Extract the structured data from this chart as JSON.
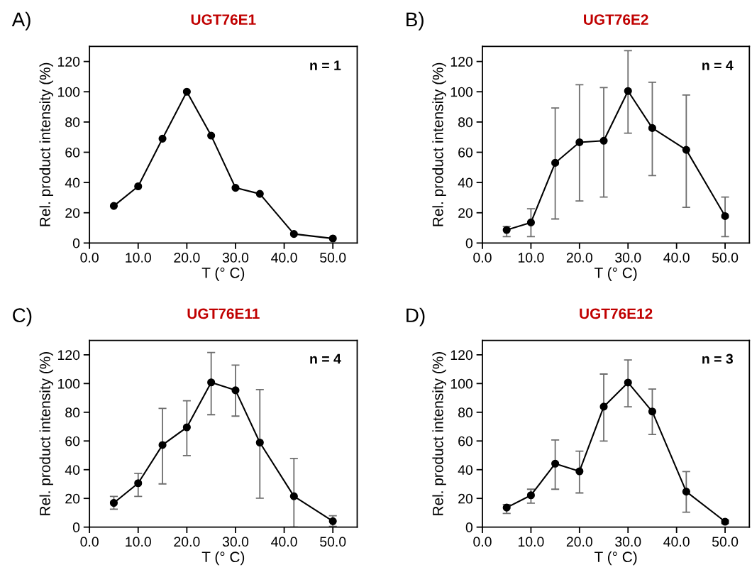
{
  "chart_data": [
    {
      "type": "line",
      "title": "UGT76E1",
      "xlabel": "T (° C)",
      "ylabel": "Rel. product intensity (%)",
      "annotations": [
        "A)",
        "n = 1"
      ],
      "x": [
        5,
        10,
        15,
        20,
        25,
        30,
        35,
        42,
        50
      ],
      "series": [
        {
          "color": "#000000",
          "values": [
            24.5,
            37.5,
            69,
            100,
            71,
            36.5,
            32.5,
            6,
            3
          ]
        }
      ],
      "xlim": [
        0,
        55
      ],
      "xticks": [
        {
          "value": 0,
          "label": "0.0"
        },
        {
          "value": 10,
          "label": "10.0"
        },
        {
          "value": 20,
          "label": "20.0"
        },
        {
          "value": 30,
          "label": "30.0"
        },
        {
          "value": 40,
          "label": "40.0"
        },
        {
          "value": 50,
          "label": "50.0"
        }
      ],
      "ylim": [
        0,
        130
      ],
      "yticks": [
        0,
        20,
        40,
        60,
        80,
        100,
        120
      ],
      "marker": "circle",
      "line_style": "solid",
      "grid": false,
      "legend": false
    },
    {
      "type": "line",
      "title": "UGT76E2",
      "xlabel": "T (° C)",
      "ylabel": "Rel. product intensity (%)",
      "annotations": [
        "B)",
        "n = 4"
      ],
      "x": [
        5,
        10,
        15,
        20,
        25,
        30,
        35,
        42,
        50
      ],
      "series": [
        {
          "color": "#000000",
          "values": [
            8.6,
            13.6,
            53,
            66.6,
            67.6,
            100.5,
            76,
            61.6,
            17.8
          ],
          "errors": [
            [
              4.2,
              10.9
            ],
            [
              4.2,
              22.6
            ],
            [
              15.9,
              89.3
            ],
            [
              27.8,
              104.6
            ],
            [
              30.4,
              102.8
            ],
            [
              72.6,
              127.2
            ],
            [
              44.6,
              106.3
            ],
            [
              23.6,
              97.8
            ],
            [
              4.2,
              30.4
            ]
          ]
        }
      ],
      "xlim": [
        0,
        55
      ],
      "xticks": [
        {
          "value": 0,
          "label": "0.0"
        },
        {
          "value": 10,
          "label": "10.0"
        },
        {
          "value": 20,
          "label": "20.0"
        },
        {
          "value": 30,
          "label": "30.0"
        },
        {
          "value": 40,
          "label": "40.0"
        },
        {
          "value": 50,
          "label": "50.0"
        }
      ],
      "ylim": [
        0,
        130
      ],
      "yticks": [
        0,
        20,
        40,
        60,
        80,
        100,
        120
      ],
      "marker": "circle",
      "line_style": "solid",
      "grid": false,
      "legend": false
    },
    {
      "type": "line",
      "title": "UGT76E11",
      "xlabel": "T (° C)",
      "ylabel": "Rel. product intensity (%)",
      "annotations": [
        "C)",
        "n = 4"
      ],
      "x": [
        5,
        10,
        15,
        20,
        25,
        30,
        35,
        42,
        50
      ],
      "series": [
        {
          "color": "#000000",
          "values": [
            16.9,
            30.6,
            57.2,
            69.5,
            100.8,
            95.3,
            58.9,
            21.5,
            4.1
          ],
          "errors": [
            [
              12.5,
              21.4
            ],
            [
              21.4,
              37.5
            ],
            [
              30.1,
              82.7
            ],
            [
              49.8,
              88
            ],
            [
              78.3,
              121.6
            ],
            [
              77.3,
              112.8
            ],
            [
              20.2,
              95.8
            ],
            [
              0,
              47.8
            ],
            [
              0.5,
              7.9
            ]
          ]
        }
      ],
      "xlim": [
        0,
        55
      ],
      "xticks": [
        {
          "value": 0,
          "label": "0.0"
        },
        {
          "value": 10,
          "label": "10.0"
        },
        {
          "value": 20,
          "label": "20.0"
        },
        {
          "value": 30,
          "label": "30.0"
        },
        {
          "value": 40,
          "label": "40.0"
        },
        {
          "value": 50,
          "label": "50.0"
        }
      ],
      "ylim": [
        0,
        130
      ],
      "yticks": [
        0,
        20,
        40,
        60,
        80,
        100,
        120
      ],
      "marker": "circle",
      "line_style": "solid",
      "grid": false,
      "legend": false
    },
    {
      "type": "line",
      "title": "UGT76E12",
      "xlabel": "T (° C)",
      "ylabel": "Rel. product intensity (%)",
      "annotations": [
        "D)",
        "n = 3"
      ],
      "x": [
        5,
        10,
        15,
        20,
        25,
        30,
        35,
        42,
        50
      ],
      "series": [
        {
          "color": "#000000",
          "values": [
            13.6,
            22.2,
            44.2,
            38.9,
            83.9,
            100.7,
            80.5,
            24.7,
            3.8
          ],
          "errors": [
            [
              9.5,
              15.7
            ],
            [
              16.7,
              26.4
            ],
            [
              26.4,
              60.7
            ],
            [
              23.8,
              52.9
            ],
            [
              59.9,
              106.6
            ],
            [
              83.8,
              116.4
            ],
            [
              64.5,
              96.2
            ],
            [
              10.4,
              38.7
            ],
            [
              2.5,
              5
            ]
          ]
        }
      ],
      "xlim": [
        0,
        55
      ],
      "xticks": [
        {
          "value": 0,
          "label": "0.0"
        },
        {
          "value": 10,
          "label": "10.0"
        },
        {
          "value": 20,
          "label": "20.0"
        },
        {
          "value": 30,
          "label": "30.0"
        },
        {
          "value": 40,
          "label": "40.0"
        },
        {
          "value": 50,
          "label": "50.0"
        }
      ],
      "ylim": [
        0,
        130
      ],
      "yticks": [
        0,
        20,
        40,
        60,
        80,
        100,
        120
      ],
      "marker": "circle",
      "line_style": "solid",
      "grid": false,
      "legend": false
    }
  ]
}
